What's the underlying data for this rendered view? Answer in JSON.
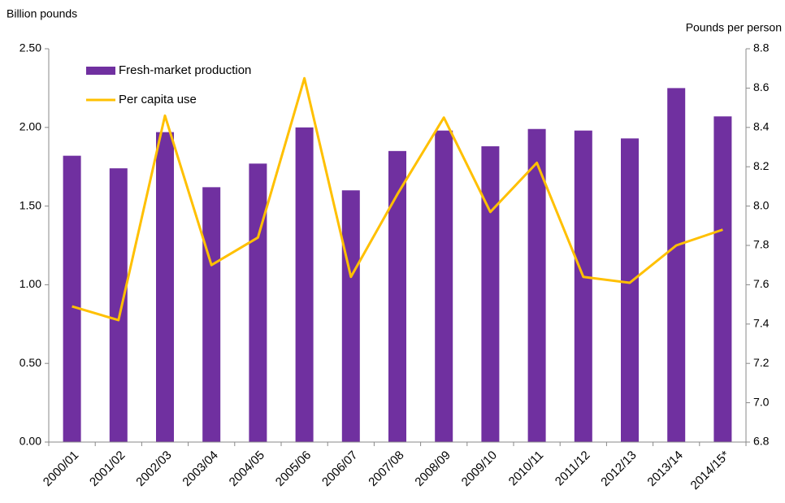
{
  "chart_data": {
    "type": "bar-line",
    "y_label": "Billion pounds",
    "y2_label": "Pounds per person",
    "categories": [
      "2000/01",
      "2001/02",
      "2002/03",
      "2003/04",
      "2004/05",
      "2005/06",
      "2006/07",
      "2007/08",
      "2008/09",
      "2009/10",
      "2010/11",
      "2011/12",
      "2012/13",
      "2013/14",
      "2014/15*"
    ],
    "series": [
      {
        "name": "Fresh-market production",
        "type": "bar",
        "color": "#7030a0",
        "values": [
          1.82,
          1.74,
          1.97,
          1.62,
          1.77,
          2.0,
          1.6,
          1.85,
          1.98,
          1.88,
          1.99,
          1.98,
          1.93,
          2.25,
          2.07
        ]
      },
      {
        "name": "Per capita use",
        "type": "line",
        "axis": "y2",
        "color": "#ffc000",
        "values": [
          7.49,
          7.42,
          8.46,
          7.7,
          7.84,
          8.65,
          7.64,
          8.06,
          8.45,
          7.97,
          8.22,
          7.64,
          7.61,
          7.8,
          7.88
        ]
      }
    ],
    "ylim": [
      0,
      2.5
    ],
    "yticks": [
      {
        "value": 0,
        "label": "0.00"
      },
      {
        "value": 0.5,
        "label": "0.50"
      },
      {
        "value": 1,
        "label": "1.00"
      },
      {
        "value": 1.5,
        "label": "1.50"
      },
      {
        "value": 2,
        "label": "2.00"
      },
      {
        "value": 2.5,
        "label": "2.50"
      }
    ],
    "y2lim": [
      6.8,
      8.8
    ],
    "y2ticks": [
      6.8,
      {
        "value": 7,
        "label": "7.0"
      },
      7.2,
      7.4,
      7.6,
      7.8,
      {
        "value": 8,
        "label": "8.0"
      },
      8.2,
      8.4,
      8.6,
      8.8
    ],
    "legend": "top-left"
  }
}
